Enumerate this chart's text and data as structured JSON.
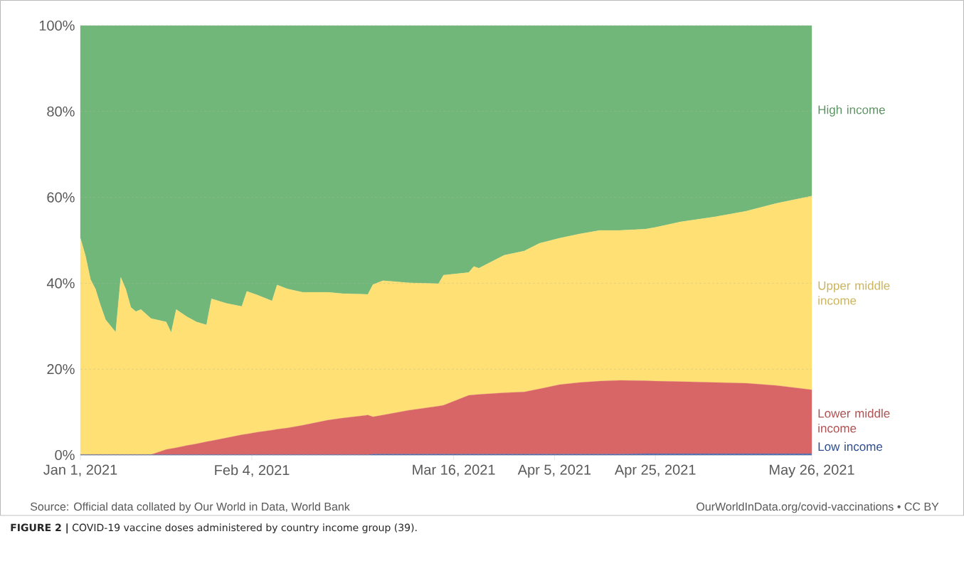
{
  "chart_data": {
    "type": "area",
    "stacked": true,
    "x": [
      "2021-01-01",
      "2021-01-02",
      "2021-01-03",
      "2021-01-04",
      "2021-01-05",
      "2021-01-06",
      "2021-01-08",
      "2021-01-09",
      "2021-01-10",
      "2021-01-11",
      "2021-01-12",
      "2021-01-13",
      "2021-01-15",
      "2021-01-18",
      "2021-01-19",
      "2021-01-20",
      "2021-01-22",
      "2021-01-24",
      "2021-01-26",
      "2021-01-27",
      "2021-01-30",
      "2021-02-02",
      "2021-02-03",
      "2021-02-05",
      "2021-02-08",
      "2021-02-09",
      "2021-02-11",
      "2021-02-14",
      "2021-02-19",
      "2021-02-22",
      "2021-02-27",
      "2021-02-28",
      "2021-03-02",
      "2021-03-07",
      "2021-03-13",
      "2021-03-14",
      "2021-03-19",
      "2021-03-20",
      "2021-03-21",
      "2021-03-26",
      "2021-03-30",
      "2021-04-02",
      "2021-04-06",
      "2021-04-10",
      "2021-04-14",
      "2021-04-18",
      "2021-04-23",
      "2021-04-25",
      "2021-04-30",
      "2021-05-07",
      "2021-05-13",
      "2021-05-19",
      "2021-05-26"
    ],
    "series": [
      {
        "name": "Low income",
        "color": "#3a62b4",
        "values": [
          0.1,
          0.1,
          0.1,
          0.1,
          0.1,
          0.1,
          0.1,
          0.1,
          0.1,
          0.1,
          0.1,
          0.1,
          0.1,
          0.1,
          0.1,
          0.1,
          0.1,
          0.1,
          0.1,
          0.1,
          0.1,
          0.1,
          0.1,
          0.1,
          0.1,
          0.1,
          0.1,
          0.1,
          0.1,
          0.1,
          0.1,
          0.2,
          0.2,
          0.2,
          0.2,
          0.2,
          0.2,
          0.2,
          0.2,
          0.2,
          0.2,
          0.2,
          0.2,
          0.2,
          0.2,
          0.2,
          0.3,
          0.3,
          0.3,
          0.3,
          0.3,
          0.3,
          0.3
        ]
      },
      {
        "name": "Lower middle income",
        "color": "#d96666",
        "values": [
          0,
          0,
          0,
          0,
          0,
          0,
          0,
          0,
          0,
          0,
          0,
          0,
          0,
          1.2,
          1.4,
          1.6,
          2.1,
          2.5,
          3.0,
          3.2,
          3.9,
          4.6,
          4.8,
          5.2,
          5.7,
          5.9,
          6.2,
          6.8,
          8.0,
          8.5,
          9.2,
          8.7,
          9.1,
          10.2,
          11.2,
          11.4,
          13.7,
          13.8,
          13.9,
          14.3,
          14.5,
          15.2,
          16.2,
          16.7,
          17.0,
          17.2,
          17.0,
          16.9,
          16.8,
          16.6,
          16.4,
          15.9,
          14.9
        ]
      },
      {
        "name": "Upper middle income",
        "color": "#fee075",
        "values": [
          50.4,
          46.3,
          40.8,
          38.5,
          34.7,
          31.4,
          28.5,
          41.3,
          38.5,
          34.3,
          33.3,
          33.8,
          31.7,
          29.7,
          27.0,
          32.2,
          30.1,
          28.4,
          27.2,
          33.1,
          31.3,
          29.9,
          33.2,
          32.0,
          30.1,
          33.6,
          32.4,
          31.0,
          29.8,
          29.0,
          28.1,
          30.8,
          31.3,
          29.7,
          28.5,
          30.3,
          28.6,
          29.9,
          29.4,
          32.0,
          32.8,
          33.9,
          34.1,
          34.6,
          35.1,
          34.9,
          35.3,
          35.8,
          37.2,
          38.6,
          40.1,
          42.4,
          45.1
        ]
      },
      {
        "name": "High income",
        "color": "#71b779",
        "values": [
          49.5,
          53.6,
          59.1,
          61.4,
          65.2,
          68.5,
          71.4,
          58.6,
          61.4,
          65.6,
          66.6,
          66.1,
          68.2,
          69.0,
          71.5,
          66.1,
          67.7,
          69.0,
          69.7,
          63.6,
          64.7,
          65.4,
          61.9,
          62.7,
          64.1,
          60.4,
          61.3,
          62.1,
          62.1,
          62.4,
          62.6,
          60.3,
          59.4,
          59.9,
          60.1,
          58.1,
          57.5,
          56.1,
          56.5,
          53.5,
          52.5,
          50.7,
          49.5,
          48.5,
          47.7,
          47.7,
          47.4,
          47.0,
          45.7,
          44.5,
          43.2,
          41.4,
          39.7
        ]
      }
    ],
    "xlim": [
      "2021-01-01",
      "2021-05-26"
    ],
    "xticks": [
      {
        "value": "2021-01-01",
        "label": "Jan 1, 2021"
      },
      {
        "value": "2021-02-04",
        "label": "Feb 4, 2021"
      },
      {
        "value": "2021-03-16",
        "label": "Mar 16, 2021"
      },
      {
        "value": "2021-04-05",
        "label": "Apr 5, 2021"
      },
      {
        "value": "2021-04-25",
        "label": "Apr 25, 2021"
      },
      {
        "value": "2021-05-26",
        "label": "May 26, 2021"
      }
    ],
    "ylim": [
      0,
      100
    ],
    "yticks": [
      {
        "value": 0,
        "label": "0%"
      },
      {
        "value": 20,
        "label": "20%"
      },
      {
        "value": 40,
        "label": "40%"
      },
      {
        "value": 60,
        "label": "60%"
      },
      {
        "value": 80,
        "label": "80%"
      },
      {
        "value": 100,
        "label": "100%"
      }
    ],
    "grid": "y",
    "annotations": [
      "Source: Official data collated by Our World in Data, World Bank",
      "OurWorldInData.org/covid-vaccinations • CC BY",
      "**FIGURE 2 |** COVID-19 vaccine doses administered by country income group (39)."
    ]
  }
}
